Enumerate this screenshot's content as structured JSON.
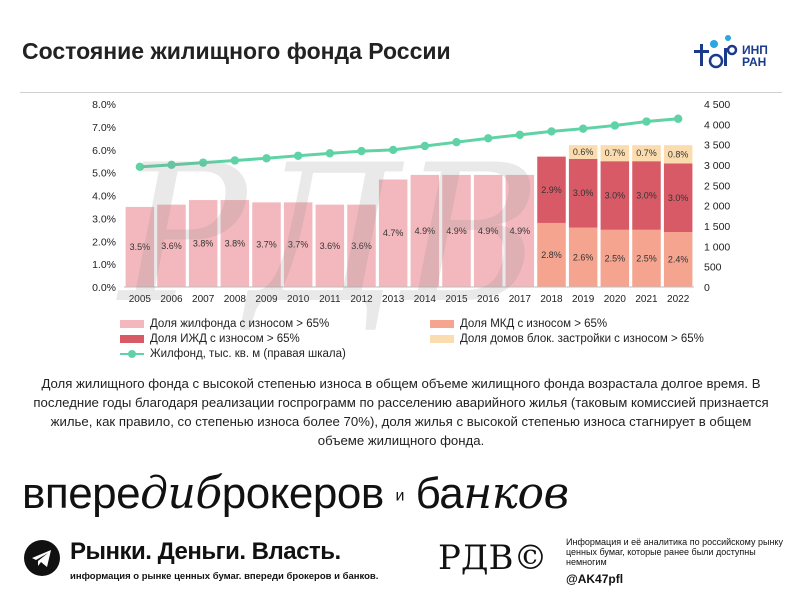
{
  "page": {
    "title": "Состояние жилищного фонда России",
    "logo_text_line1": "ИНП",
    "logo_text_line2": "РАН",
    "description": "Доля жилищного фонда с высокой степенью износа в общем объеме жилищного фонда возрастала долгое время. В последние годы благодаря реализации госпрограмм по расселению аварийного жилья (таковым комиссией признается жилье, как правило, со степенью износа более 70%), доля жилья с высокой степенью износа стагнирует в общем объеме жилищного фонда.",
    "slogan_part1": "впере",
    "slogan_part2": "ди",
    "slogan_part3": "б",
    "slogan_part4": "рокеров",
    "slogan_and": "и",
    "slogan_part5": "ба",
    "slogan_part6": "нков",
    "tg_brand": "Рынки. Деньги. Власть.",
    "tg_sub": "информация о рынке ценных бумаг. впереди брокеров и банков.",
    "rdv_logo": "РДВ©",
    "info_text": "Информация и её аналитика по российскому рынку ценных бумаг, которые ранее были доступны немногим",
    "handle": "@AK47pfl"
  },
  "colors": {
    "share_total": "#f2b8bd",
    "mkd": "#f4a48f",
    "izhd": "#d95a67",
    "block": "#fbdcae",
    "line": "#5fd3a6"
  },
  "chart_data": {
    "type": "bar",
    "categories": [
      "2005",
      "2006",
      "2007",
      "2008",
      "2009",
      "2010",
      "2011",
      "2012",
      "2013",
      "2014",
      "2015",
      "2016",
      "2017",
      "2018",
      "2019",
      "2020",
      "2021",
      "2022"
    ],
    "series": [
      {
        "name": "Доля жилфонда с износом > 65%",
        "values": [
          3.5,
          3.6,
          3.8,
          3.8,
          3.7,
          3.7,
          3.6,
          3.6,
          4.7,
          4.9,
          4.9,
          4.9,
          4.9,
          null,
          null,
          null,
          null,
          null
        ]
      },
      {
        "name": "Доля МКД с износом > 65%",
        "values": [
          null,
          null,
          null,
          null,
          null,
          null,
          null,
          null,
          null,
          null,
          null,
          null,
          null,
          2.8,
          2.6,
          2.5,
          2.5,
          2.4
        ]
      },
      {
        "name": "Доля ИЖД с износом > 65%",
        "values": [
          null,
          null,
          null,
          null,
          null,
          null,
          null,
          null,
          null,
          null,
          null,
          null,
          null,
          2.9,
          3.0,
          3.0,
          3.0,
          3.0
        ]
      },
      {
        "name": "Доля домов блок. застройки с износом > 65%",
        "values": [
          null,
          null,
          null,
          null,
          null,
          null,
          null,
          null,
          null,
          null,
          null,
          null,
          null,
          null,
          0.6,
          0.7,
          0.7,
          0.8
        ]
      },
      {
        "name": "Жилфонд, тыс. кв. м (правая шкала)",
        "axis": "right",
        "type": "line",
        "values": [
          2955,
          3004,
          3058,
          3111,
          3165,
          3227,
          3287,
          3342,
          3371,
          3468,
          3561,
          3656,
          3741,
          3826,
          3893,
          3972,
          4069,
          4137
        ]
      }
    ],
    "bar_labels": {
      "share_total": [
        "3.5%",
        "3.6%",
        "3.8%",
        "3.8%",
        "3.7%",
        "3.7%",
        "3.6%",
        "3.6%",
        "4.7%",
        "4.9%",
        "4.9%",
        "4.9%",
        "4.9%",
        "",
        "",
        "",
        "",
        ""
      ],
      "mkd": [
        "",
        "",
        "",
        "",
        "",
        "",
        "",
        "",
        "",
        "",
        "",
        "",
        "",
        "2.8%",
        "2.6%",
        "2.5%",
        "2.5%",
        "2.4%"
      ],
      "izhd": [
        "",
        "",
        "",
        "",
        "",
        "",
        "",
        "",
        "",
        "",
        "",
        "",
        "",
        "2.9%",
        "3.0%",
        "3.0%",
        "3.0%",
        "3.0%"
      ],
      "block": [
        "",
        "",
        "",
        "",
        "",
        "",
        "",
        "",
        "",
        "",
        "",
        "",
        "",
        "",
        "0.6%",
        "0.7%",
        "0.7%",
        "0.8%"
      ]
    },
    "y_left": {
      "min": 0,
      "max": 8,
      "ticks": [
        "0.0%",
        "1.0%",
        "2.0%",
        "3.0%",
        "4.0%",
        "5.0%",
        "6.0%",
        "7.0%",
        "8.0%"
      ]
    },
    "y_right": {
      "min": 0,
      "max": 4500,
      "ticks": [
        "0",
        "500",
        "1 000",
        "1 500",
        "2 000",
        "2 500",
        "3 000",
        "3 500",
        "4 000",
        "4 500"
      ]
    },
    "legend_position": "bottom",
    "legend": {
      "share_total": "Доля жилфонда с износом > 65%",
      "mkd": "Доля МКД с износом > 65%",
      "izhd": "Доля ИЖД с износом > 65%",
      "block": "Доля домов блок. застройки с износом > 65%",
      "line": "Жилфонд, тыс. кв. м (правая шкала)"
    }
  }
}
